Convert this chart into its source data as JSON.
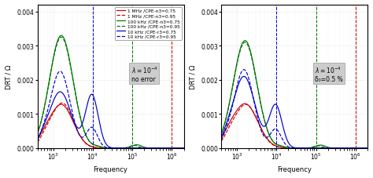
{
  "xlim_min": 400,
  "xlim_max": 2000000,
  "ylim": [
    0.0,
    0.0042
  ],
  "yticks": [
    0.0,
    0.001,
    0.002,
    0.003,
    0.004
  ],
  "ylabel": "DRT / Ω",
  "xlabel": "Frequency",
  "legend_labels": [
    "1 MHz /CPE-n3=0.75",
    "1 MHz /CPE-n3=0.95",
    "100 kHz /CPE-n3=0.75",
    "100 kHz /CPE-n3=0.95",
    "10 kHz /CPE-r3=0.75",
    "10 kHz /CPE-r3=0.95"
  ],
  "c_red": "#cc0000",
  "c_green": "#007700",
  "c_blue": "#0000cc",
  "vline_10k": 10000,
  "vline_100k": 100000,
  "vline_1M": 1000000,
  "ann_left_line1": "λ=10",
  "ann_left_exp": "-4",
  "ann_left_line2": "no error",
  "ann_right_line1": "λ=10",
  "ann_right_exp": "-4",
  "ann_right_line2": "δ₀=0.5 %"
}
